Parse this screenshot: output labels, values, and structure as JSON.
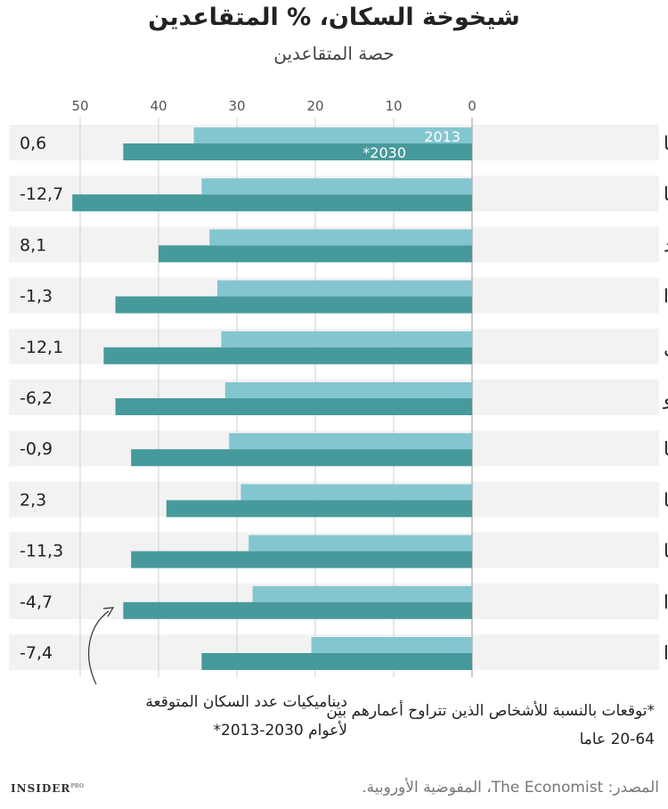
{
  "header": {
    "title": "شيخوخة السكان، % المتقاعدين",
    "subtitle": "حصة المتقاعدين"
  },
  "chart_data": {
    "type": "bar",
    "orientation": "horizontal",
    "categories": [
      "إيطاليا",
      "ألمانيا",
      "السويد",
      "فنلندا",
      "البرتغال",
      "منطقة اليورو",
      "فرنسا",
      "بريطانيا",
      "إسبانيا",
      "هولندا",
      "أيرلندا"
    ],
    "series": [
      {
        "name": "2013",
        "color": "#84c6d0",
        "values": [
          35.5,
          34.5,
          33.5,
          32.5,
          32.0,
          31.5,
          31.0,
          29.5,
          28.5,
          28.0,
          20.5
        ]
      },
      {
        "name": "*2030",
        "color": "#479a9c",
        "values": [
          44.5,
          51.0,
          40.0,
          45.5,
          47.0,
          45.5,
          43.5,
          39.0,
          43.5,
          44.5,
          34.5
        ]
      }
    ],
    "change_labels": [
      "0,6",
      "-12,7",
      "8,1",
      "-1,3",
      "-12,1",
      "-6,2",
      "-0,9",
      "2,3",
      "-11,3",
      "-4,7",
      "-7,4"
    ],
    "xticks": [
      "50",
      "40",
      "30",
      "20",
      "10",
      "0"
    ],
    "xlim": [
      0,
      52
    ],
    "x_direction": "reversed",
    "grid": true
  },
  "notes": {
    "left_line1": "ديناميكيات عدد السكان المتوقعة",
    "left_line2": "لأعوام 2030-2013*",
    "right_line1": "*توقعات بالنسبة للأشخاص الذين تتراوح أعمارهم بين",
    "right_line2": "20-64 عاما"
  },
  "source": "المصدر: The Economist، المفوضية الأوروبية.",
  "logo": {
    "text": "INSIDER",
    "sup": "PRO"
  }
}
